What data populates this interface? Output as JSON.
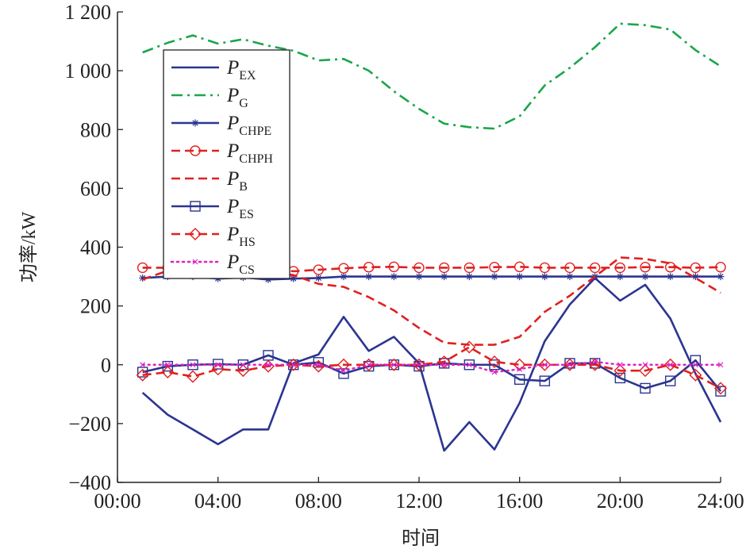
{
  "chart_data": {
    "type": "line",
    "xlabel": "时间",
    "ylabel": "功率/kW",
    "xlim": [
      1,
      24
    ],
    "ylim": [
      -400,
      1200
    ],
    "x_ticks": [
      {
        "value": 0,
        "label": "00:00"
      },
      {
        "value": 4,
        "label": "04:00"
      },
      {
        "value": 8,
        "label": "08:00"
      },
      {
        "value": 12,
        "label": "12:00"
      },
      {
        "value": 16,
        "label": "16:00"
      },
      {
        "value": 20,
        "label": "20:00"
      },
      {
        "value": 24,
        "label": "24:00"
      }
    ],
    "y_ticks": [
      {
        "value": -400,
        "label": "−400"
      },
      {
        "value": -200,
        "label": "−200"
      },
      {
        "value": 0,
        "label": "0"
      },
      {
        "value": 200,
        "label": "200"
      },
      {
        "value": 400,
        "label": "400"
      },
      {
        "value": 600,
        "label": "600"
      },
      {
        "value": 800,
        "label": "800"
      },
      {
        "value": 1000,
        "label": "1 000"
      },
      {
        "value": 1200,
        "label": "1 200"
      }
    ],
    "grid": false,
    "legend_position": "top-left",
    "x": [
      1,
      2,
      3,
      4,
      5,
      6,
      7,
      8,
      9,
      10,
      11,
      12,
      13,
      14,
      15,
      16,
      17,
      18,
      19,
      20,
      21,
      22,
      23,
      24
    ],
    "series": [
      {
        "name": "P",
        "sub": "EX",
        "color": "#2b3590",
        "dash": "solid",
        "marker": "none",
        "values": [
          -95,
          -170,
          -220,
          -270,
          -220,
          -220,
          5,
          35,
          163,
          47,
          95,
          5,
          -292,
          -195,
          -288,
          -130,
          80,
          205,
          295,
          218,
          272,
          157,
          -30,
          -195
        ]
      },
      {
        "name": "P",
        "sub": "G",
        "color": "#1aa64a",
        "dash": "dashdot",
        "marker": "none",
        "values": [
          1062,
          1095,
          1120,
          1092,
          1107,
          1085,
          1068,
          1035,
          1040,
          1000,
          930,
          870,
          820,
          808,
          803,
          845,
          950,
          1010,
          1080,
          1160,
          1155,
          1140,
          1070,
          1015
        ]
      },
      {
        "name": "P",
        "sub": "CHPE",
        "color": "#2b3590",
        "dash": "solid",
        "marker": "star",
        "values": [
          295,
          300,
          300,
          293,
          297,
          290,
          293,
          295,
          300,
          300,
          300,
          300,
          300,
          300,
          300,
          300,
          300,
          300,
          300,
          300,
          300,
          300,
          300,
          300
        ]
      },
      {
        "name": "P",
        "sub": "CHPH",
        "color": "#e02020",
        "dash": "dash",
        "marker": "circle",
        "values": [
          330,
          330,
          330,
          325,
          327,
          325,
          318,
          323,
          328,
          332,
          333,
          330,
          330,
          330,
          332,
          333,
          330,
          330,
          330,
          330,
          332,
          332,
          330,
          332
        ]
      },
      {
        "name": "P",
        "sub": "B",
        "color": "#e02020",
        "dash": "dash",
        "marker": "none",
        "values": [
          290,
          320,
          335,
          330,
          325,
          318,
          305,
          275,
          265,
          230,
          185,
          125,
          75,
          68,
          68,
          95,
          180,
          235,
          300,
          365,
          360,
          345,
          295,
          245
        ]
      },
      {
        "name": "P",
        "sub": "ES",
        "color": "#2b3590",
        "dash": "solid",
        "marker": "square",
        "values": [
          -25,
          -5,
          0,
          2,
          0,
          32,
          0,
          8,
          -30,
          -5,
          0,
          -5,
          5,
          0,
          0,
          -50,
          -55,
          5,
          5,
          -45,
          -80,
          -55,
          15,
          -90
        ]
      },
      {
        "name": "P",
        "sub": "HS",
        "color": "#e02020",
        "dash": "dash",
        "marker": "diamond",
        "values": [
          -35,
          -25,
          -40,
          -15,
          -20,
          -5,
          0,
          -5,
          0,
          0,
          0,
          0,
          10,
          60,
          10,
          0,
          0,
          0,
          0,
          -20,
          -20,
          0,
          -35,
          -80
        ]
      },
      {
        "name": "P",
        "sub": "CS",
        "color": "#e020c0",
        "dash": "dot",
        "marker": "x",
        "values": [
          0,
          0,
          0,
          0,
          0,
          0,
          0,
          0,
          -20,
          0,
          0,
          0,
          0,
          0,
          -25,
          -15,
          0,
          0,
          10,
          0,
          0,
          0,
          0,
          0
        ]
      }
    ]
  }
}
